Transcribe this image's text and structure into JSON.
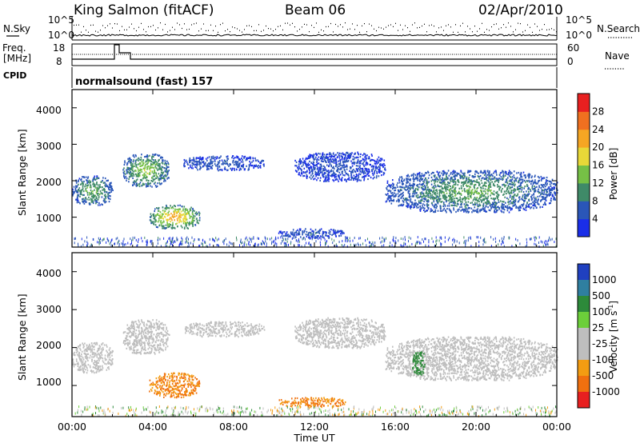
{
  "header": {
    "station": "King Salmon (fitACF)",
    "beam": "Beam 06",
    "date": "02/Apr/2010"
  },
  "top_panels": {
    "nsky_label": "N.Sky",
    "nsearch_label": "N.Search",
    "noise_ticks": [
      "10^5",
      "10^0"
    ],
    "freq_label_line1": "Freq.",
    "freq_label_line2": "[MHz]",
    "freq_ticks": [
      "18",
      "8"
    ],
    "nave_label": "Nave",
    "nave_ticks": [
      "60",
      "0"
    ],
    "cpid_label": "CPID",
    "cpid_text": "normalsound (fast) 157"
  },
  "axes": {
    "xlabel": "Time UT",
    "xticks": [
      "00:00",
      "04:00",
      "08:00",
      "12:00",
      "16:00",
      "20:00",
      "00:00"
    ],
    "ylabel": "Slant Range [km]",
    "yticks": [
      "1000",
      "2000",
      "3000",
      "4000"
    ]
  },
  "power_colorbar": {
    "label": "Power [dB]",
    "ticks": [
      "4",
      "8",
      "12",
      "16",
      "20",
      "24",
      "28"
    ],
    "colors": [
      "#1a2ee8",
      "#2a56b8",
      "#3f8a68",
      "#76c046",
      "#e8d838",
      "#f5a623",
      "#f07020",
      "#e82020"
    ]
  },
  "velocity_colorbar": {
    "label": "Velocity [m s",
    "label_sup": "-1",
    "label_end": "]",
    "ticks": [
      "1000",
      "500",
      "100",
      "25",
      "-25",
      "-100",
      "-500",
      "-1000"
    ],
    "colors": [
      "#2040c0",
      "#2f7fa0",
      "#2d8a3a",
      "#6ccf3a",
      "#bebebe",
      "#bebebe",
      "#f39c12",
      "#f0700f",
      "#e82020"
    ]
  },
  "chart_data": [
    {
      "type": "heatmap",
      "title": "Power",
      "xlabel": "Time UT",
      "ylabel": "Slant Range [km]",
      "x_range_hours": [
        0,
        24
      ],
      "y_range_km": [
        180,
        4500
      ],
      "echo_regions": [
        {
          "t0": 0.0,
          "t1": 2.0,
          "r0": 1350,
          "r1": 2150,
          "level_db": 12
        },
        {
          "t0": 2.5,
          "t1": 4.8,
          "r0": 1850,
          "r1": 2750,
          "level_db": 14
        },
        {
          "t0": 3.8,
          "t1": 6.3,
          "r0": 700,
          "r1": 1350,
          "level_db": 20
        },
        {
          "t0": 5.5,
          "t1": 9.5,
          "r0": 2300,
          "r1": 2700,
          "level_db": 6
        },
        {
          "t0": 10.2,
          "t1": 13.5,
          "r0": 450,
          "r1": 700,
          "level_db": 6
        },
        {
          "t0": 11.0,
          "t1": 15.5,
          "r0": 2000,
          "r1": 2800,
          "level_db": 5
        },
        {
          "t0": 15.5,
          "t1": 24.0,
          "r0": 1150,
          "r1": 2300,
          "level_db": 11
        }
      ]
    },
    {
      "type": "heatmap",
      "title": "Velocity",
      "xlabel": "Time UT",
      "ylabel": "Slant Range [km]",
      "x_range_hours": [
        0,
        24
      ],
      "y_range_km": [
        180,
        4500
      ],
      "echo_regions": [
        {
          "t0": 0.0,
          "t1": 2.0,
          "r0": 1350,
          "r1": 2150,
          "velocity_ms": 0
        },
        {
          "t0": 2.5,
          "t1": 4.8,
          "r0": 1850,
          "r1": 2750,
          "velocity_ms": 0
        },
        {
          "t0": 3.8,
          "t1": 6.3,
          "r0": 700,
          "r1": 1350,
          "velocity_ms": -300
        },
        {
          "t0": 5.5,
          "t1": 9.5,
          "r0": 2300,
          "r1": 2700,
          "velocity_ms": 0
        },
        {
          "t0": 10.2,
          "t1": 13.5,
          "r0": 450,
          "r1": 700,
          "velocity_ms": -300
        },
        {
          "t0": 11.0,
          "t1": 15.5,
          "r0": 2000,
          "r1": 2800,
          "velocity_ms": 0
        },
        {
          "t0": 15.5,
          "t1": 24.0,
          "r0": 1150,
          "r1": 2300,
          "velocity_ms": 0
        },
        {
          "t0": 16.8,
          "t1": 17.5,
          "r0": 1300,
          "r1": 1900,
          "velocity_ms": 80
        }
      ]
    }
  ]
}
